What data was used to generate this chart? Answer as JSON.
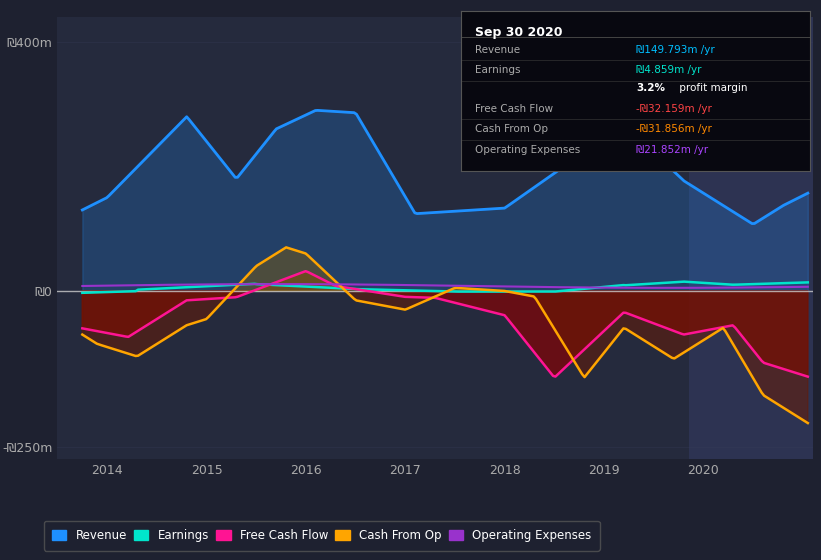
{
  "background_color": "#1e2130",
  "plot_bg_color": "#252a3d",
  "highlight_bg_color": "#2d3352",
  "title": "Sep 30 2020",
  "ylim": [
    -270,
    440
  ],
  "xlim": [
    2013.5,
    2021.1
  ],
  "xticks": [
    2014,
    2015,
    2016,
    2017,
    2018,
    2019,
    2020
  ],
  "colors": {
    "revenue": "#1e90ff",
    "earnings": "#00e5cc",
    "free_cash_flow": "#ff1493",
    "cash_from_op": "#ffa500",
    "operating_expenses": "#9932cc"
  },
  "legend_items": [
    {
      "label": "Revenue",
      "color": "#1e90ff"
    },
    {
      "label": "Earnings",
      "color": "#00e5cc"
    },
    {
      "label": "Free Cash Flow",
      "color": "#ff1493"
    },
    {
      "label": "Cash From Op",
      "color": "#ffa500"
    },
    {
      "label": "Operating Expenses",
      "color": "#9932cc"
    }
  ],
  "highlight_start": 2019.85,
  "highlight_end": 2021.1,
  "zero_line_color": "#cccccc",
  "grid_color": "#3a3f5c",
  "info_rows": [
    {
      "label": "Revenue",
      "value": "₪149.793m /yr",
      "value_color": "#00bfff"
    },
    {
      "label": "Earnings",
      "value": "₪4.859m /yr",
      "value_color": "#00e5cc"
    },
    {
      "label": "",
      "value": "3.2% profit margin",
      "value_color": "#ffffff"
    },
    {
      "label": "Free Cash Flow",
      "value": "-₪32.159m /yr",
      "value_color": "#ff4444"
    },
    {
      "label": "Cash From Op",
      "value": "-₪31.856m /yr",
      "value_color": "#ff8800"
    },
    {
      "label": "Operating Expenses",
      "value": "₪21.852m /yr",
      "value_color": "#aa44ff"
    }
  ]
}
